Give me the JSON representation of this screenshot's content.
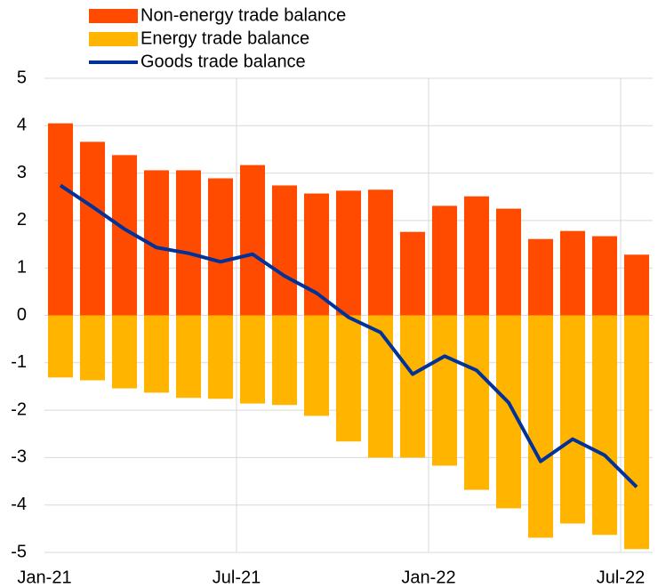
{
  "chart_data": {
    "type": "bar",
    "categories": [
      "Jan-21",
      null,
      null,
      null,
      null,
      null,
      "Jul-21",
      null,
      null,
      null,
      null,
      null,
      "Jan-22",
      null,
      null,
      null,
      null,
      null,
      "Jul-22"
    ],
    "series": [
      {
        "name": "Non-energy trade balance",
        "color": "#ff4b00",
        "type": "bar",
        "values": [
          4.05,
          3.66,
          3.38,
          3.06,
          3.06,
          2.89,
          3.17,
          2.74,
          2.57,
          2.63,
          2.65,
          1.76,
          2.31,
          2.51,
          2.25,
          1.61,
          1.78,
          1.67,
          1.28
        ]
      },
      {
        "name": "Energy trade balance",
        "color": "#ffb400",
        "type": "bar",
        "values": [
          -1.31,
          -1.37,
          -1.54,
          -1.63,
          -1.74,
          -1.76,
          -1.86,
          -1.89,
          -2.12,
          -2.66,
          -3.0,
          -3.0,
          -3.17,
          -3.68,
          -4.07,
          -4.69,
          -4.39,
          -4.63,
          -4.93
        ]
      },
      {
        "name": "Goods trade balance",
        "color": "#003299",
        "type": "line",
        "values": [
          2.74,
          2.29,
          1.82,
          1.43,
          1.31,
          1.13,
          1.29,
          0.83,
          0.47,
          -0.04,
          -0.36,
          -1.24,
          -0.86,
          -1.16,
          -1.84,
          -3.08,
          -2.61,
          -2.95,
          -3.62
        ]
      }
    ],
    "ylim": [
      -5,
      5
    ],
    "yticks": [
      -5,
      -4,
      -3,
      -2,
      -1,
      0,
      1,
      2,
      3,
      4,
      5
    ],
    "grid": true,
    "legend": "top"
  }
}
